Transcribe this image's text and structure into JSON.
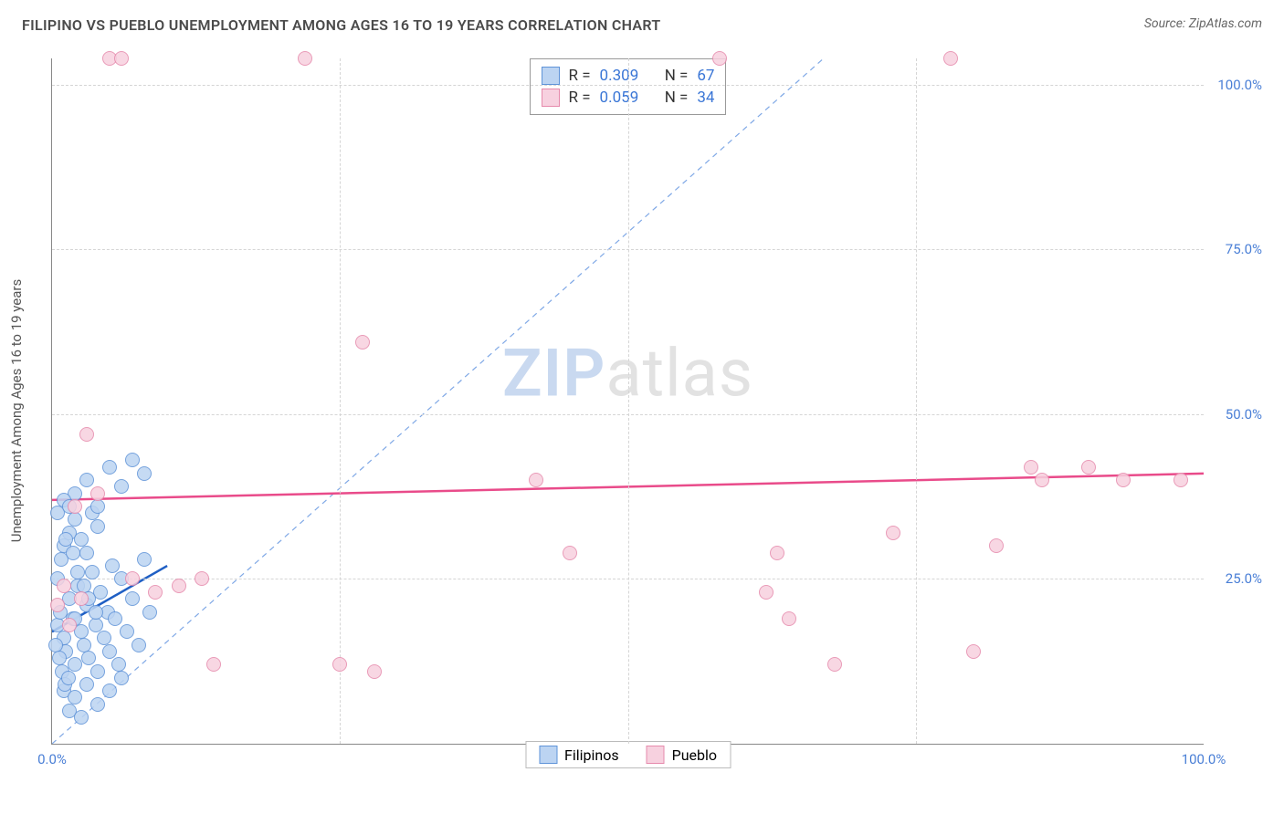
{
  "header": {
    "title": "FILIPINO VS PUEBLO UNEMPLOYMENT AMONG AGES 16 TO 19 YEARS CORRELATION CHART",
    "source_label": "Source: ZipAtlas.com"
  },
  "chart": {
    "type": "scatter",
    "y_axis_label": "Unemployment Among Ages 16 to 19 years",
    "xlim": [
      0,
      100
    ],
    "ylim": [
      0,
      104
    ],
    "x_ticks": [
      0,
      25,
      50,
      75,
      100
    ],
    "y_ticks": [
      25,
      50,
      75,
      100
    ],
    "x_tick_labels": [
      "0.0%",
      "",
      "",
      "",
      "100.0%"
    ],
    "y_tick_labels": [
      "25.0%",
      "50.0%",
      "75.0%",
      "100.0%"
    ],
    "grid_color": "#d5d5d5",
    "background_color": "#ffffff",
    "axis_color": "#888888",
    "tick_label_color": "#4a7fd6",
    "tick_fontsize": 15,
    "label_fontsize": 15,
    "series": [
      {
        "name": "Filipinos",
        "fill_color": "#bcd4f2",
        "stroke_color": "#5f93d8",
        "marker_size": 16,
        "stats": {
          "R": "0.309",
          "N": "67"
        },
        "trendline": {
          "color": "#1f5fc4",
          "width": 2.5,
          "x1": 0,
          "y1": 17,
          "x2": 10,
          "y2": 27
        },
        "points": [
          [
            0.5,
            18
          ],
          [
            0.7,
            20
          ],
          [
            1.0,
            16
          ],
          [
            1.2,
            14
          ],
          [
            1.5,
            22
          ],
          [
            1.8,
            19
          ],
          [
            2.0,
            12
          ],
          [
            2.2,
            24
          ],
          [
            2.5,
            17
          ],
          [
            2.8,
            15
          ],
          [
            3.0,
            21
          ],
          [
            3.2,
            13
          ],
          [
            3.5,
            26
          ],
          [
            3.8,
            18
          ],
          [
            4.0,
            11
          ],
          [
            4.2,
            23
          ],
          [
            4.5,
            16
          ],
          [
            4.8,
            20
          ],
          [
            5.0,
            14
          ],
          [
            5.2,
            27
          ],
          [
            5.5,
            19
          ],
          [
            5.8,
            12
          ],
          [
            6.0,
            25
          ],
          [
            6.5,
            17
          ],
          [
            7.0,
            22
          ],
          [
            7.5,
            15
          ],
          [
            8.0,
            28
          ],
          [
            8.5,
            20
          ],
          [
            1.0,
            30
          ],
          [
            1.5,
            32
          ],
          [
            2.0,
            34
          ],
          [
            2.5,
            31
          ],
          [
            3.0,
            29
          ],
          [
            3.5,
            35
          ],
          [
            4.0,
            33
          ],
          [
            2.0,
            38
          ],
          [
            3.0,
            40
          ],
          [
            4.0,
            36
          ],
          [
            5.0,
            42
          ],
          [
            6.0,
            39
          ],
          [
            7.0,
            43
          ],
          [
            8.0,
            41
          ],
          [
            1.0,
            8
          ],
          [
            2.0,
            7
          ],
          [
            3.0,
            9
          ],
          [
            4.0,
            6
          ],
          [
            5.0,
            8
          ],
          [
            6.0,
            10
          ],
          [
            1.5,
            5
          ],
          [
            2.5,
            4
          ],
          [
            0.5,
            35
          ],
          [
            1.0,
            37
          ],
          [
            1.5,
            36
          ],
          [
            2.0,
            19
          ],
          [
            0.5,
            25
          ],
          [
            0.8,
            28
          ],
          [
            1.2,
            31
          ],
          [
            1.8,
            29
          ],
          [
            2.2,
            26
          ],
          [
            2.8,
            24
          ],
          [
            3.2,
            22
          ],
          [
            3.8,
            20
          ],
          [
            0.3,
            15
          ],
          [
            0.6,
            13
          ],
          [
            0.9,
            11
          ],
          [
            1.1,
            9
          ],
          [
            1.4,
            10
          ]
        ]
      },
      {
        "name": "Pueblo",
        "fill_color": "#f7d1df",
        "stroke_color": "#e68aac",
        "marker_size": 16,
        "stats": {
          "R": "0.059",
          "N": "34"
        },
        "trendline": {
          "color": "#e94b8a",
          "width": 2.5,
          "x1": 0,
          "y1": 37,
          "x2": 100,
          "y2": 41
        },
        "points": [
          [
            0.5,
            21
          ],
          [
            1.0,
            24
          ],
          [
            1.5,
            18
          ],
          [
            2.0,
            36
          ],
          [
            2.5,
            22
          ],
          [
            3.0,
            47
          ],
          [
            4.0,
            38
          ],
          [
            5.0,
            104
          ],
          [
            6.0,
            104
          ],
          [
            7.0,
            25
          ],
          [
            9.0,
            23
          ],
          [
            11.0,
            24
          ],
          [
            13.0,
            25
          ],
          [
            14.0,
            12
          ],
          [
            22.0,
            104
          ],
          [
            25.0,
            12
          ],
          [
            27.0,
            61
          ],
          [
            28.0,
            11
          ],
          [
            42.0,
            40
          ],
          [
            45.0,
            29
          ],
          [
            58.0,
            104
          ],
          [
            62.0,
            23
          ],
          [
            63.0,
            29
          ],
          [
            64.0,
            19
          ],
          [
            68.0,
            12
          ],
          [
            73.0,
            32
          ],
          [
            78.0,
            104
          ],
          [
            80.0,
            14
          ],
          [
            82.0,
            30
          ],
          [
            85.0,
            42
          ],
          [
            86.0,
            40
          ],
          [
            90.0,
            42
          ],
          [
            93.0,
            40
          ],
          [
            98.0,
            40
          ]
        ]
      }
    ],
    "reference_line": {
      "color": "#7fa8e6",
      "dash": "6,5",
      "width": 1.2,
      "x1": 0,
      "y1": 0,
      "x2": 67,
      "y2": 104
    }
  },
  "stats_box": {
    "rows": [
      {
        "swatch_fill": "#bcd4f2",
        "swatch_stroke": "#5f93d8",
        "r_label": "R =",
        "r_val": "0.309",
        "n_label": "N =",
        "n_val": "67"
      },
      {
        "swatch_fill": "#f7d1df",
        "swatch_stroke": "#e68aac",
        "r_label": "R =",
        "r_val": "0.059",
        "n_label": "N =",
        "n_val": "34"
      }
    ]
  },
  "bottom_legend": {
    "items": [
      {
        "swatch_fill": "#bcd4f2",
        "swatch_stroke": "#5f93d8",
        "label": "Filipinos"
      },
      {
        "swatch_fill": "#f7d1df",
        "swatch_stroke": "#e68aac",
        "label": "Pueblo"
      }
    ]
  },
  "watermark": {
    "zip": "ZIP",
    "atlas": "atlas"
  }
}
